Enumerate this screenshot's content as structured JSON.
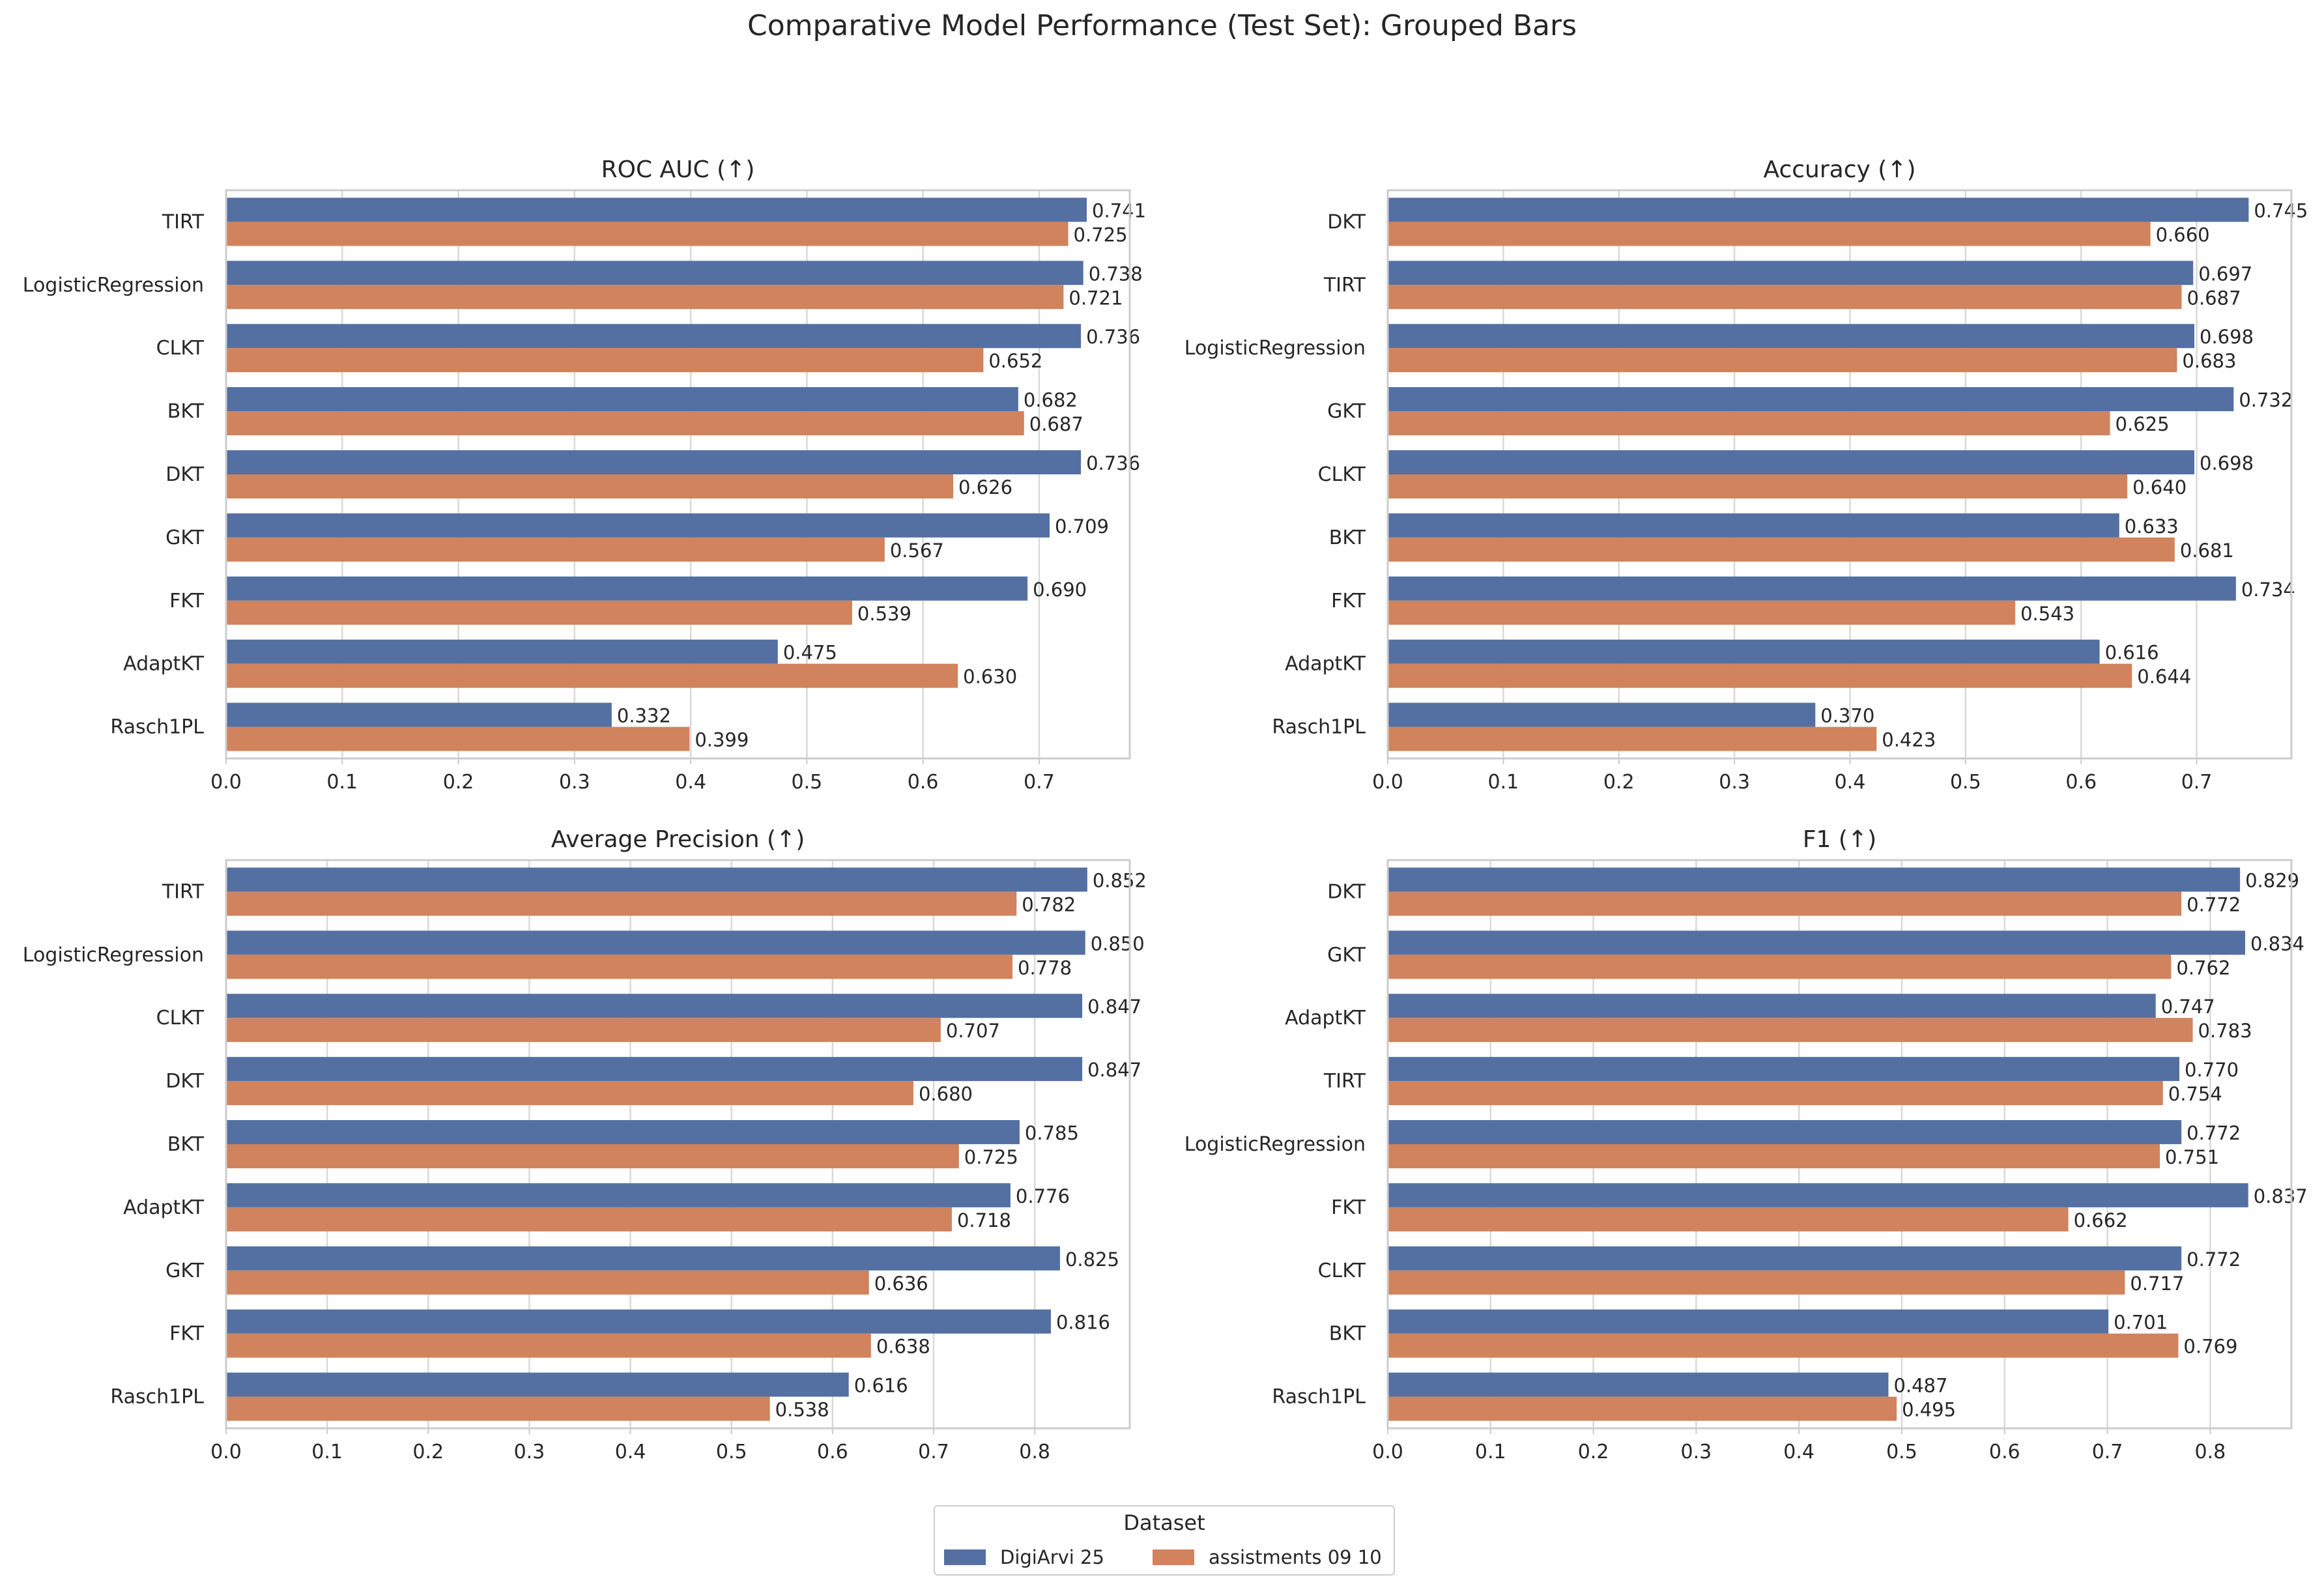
{
  "suptitle": "Comparative Model Performance (Test Set): Grouped Bars",
  "colors": {
    "DigiArvi 25": "#5470a3",
    "assistments 09 10": "#d0835c"
  },
  "legend": {
    "title": "Dataset",
    "entries": [
      "DigiArvi 25",
      "assistments 09 10"
    ]
  },
  "chart_data": [
    {
      "type": "bar",
      "orientation": "horizontal",
      "title": "ROC AUC (↑)",
      "categories": [
        "TIRT",
        "LogisticRegression",
        "CLKT",
        "BKT",
        "DKT",
        "GKT",
        "FKT",
        "AdaptKT",
        "Rasch1PL"
      ],
      "series": [
        {
          "name": "DigiArvi 25",
          "values": [
            0.741,
            0.738,
            0.736,
            0.682,
            0.736,
            0.709,
            0.69,
            0.475,
            0.332
          ]
        },
        {
          "name": "assistments 09 10",
          "values": [
            0.725,
            0.721,
            0.652,
            0.687,
            0.626,
            0.567,
            0.539,
            0.63,
            0.399
          ]
        }
      ],
      "xlim": [
        0,
        0.778
      ],
      "xticks": [
        "0.0",
        "0.1",
        "0.2",
        "0.3",
        "0.4",
        "0.5",
        "0.6",
        "0.7"
      ],
      "grid": true
    },
    {
      "type": "bar",
      "orientation": "horizontal",
      "title": "Accuracy (↑)",
      "categories": [
        "DKT",
        "TIRT",
        "LogisticRegression",
        "GKT",
        "CLKT",
        "BKT",
        "FKT",
        "AdaptKT",
        "Rasch1PL"
      ],
      "series": [
        {
          "name": "DigiArvi 25",
          "values": [
            0.745,
            0.697,
            0.698,
            0.732,
            0.698,
            0.633,
            0.734,
            0.616,
            0.37
          ]
        },
        {
          "name": "assistments 09 10",
          "values": [
            0.66,
            0.687,
            0.683,
            0.625,
            0.64,
            0.681,
            0.543,
            0.644,
            0.423
          ]
        }
      ],
      "xlim": [
        0,
        0.782
      ],
      "xticks": [
        "0.0",
        "0.1",
        "0.2",
        "0.3",
        "0.4",
        "0.5",
        "0.6",
        "0.7"
      ],
      "grid": true
    },
    {
      "type": "bar",
      "orientation": "horizontal",
      "title": "Average Precision (↑)",
      "categories": [
        "TIRT",
        "LogisticRegression",
        "CLKT",
        "DKT",
        "BKT",
        "AdaptKT",
        "GKT",
        "FKT",
        "Rasch1PL"
      ],
      "series": [
        {
          "name": "DigiArvi 25",
          "values": [
            0.852,
            0.85,
            0.847,
            0.847,
            0.785,
            0.776,
            0.825,
            0.816,
            0.616
          ]
        },
        {
          "name": "assistments 09 10",
          "values": [
            0.782,
            0.778,
            0.707,
            0.68,
            0.725,
            0.718,
            0.636,
            0.638,
            0.538
          ]
        }
      ],
      "xlim": [
        0,
        0.894
      ],
      "xticks": [
        "0.0",
        "0.1",
        "0.2",
        "0.3",
        "0.4",
        "0.5",
        "0.6",
        "0.7",
        "0.8"
      ],
      "grid": true
    },
    {
      "type": "bar",
      "orientation": "horizontal",
      "title": "F1 (↑)",
      "categories": [
        "DKT",
        "GKT",
        "AdaptKT",
        "TIRT",
        "LogisticRegression",
        "FKT",
        "CLKT",
        "BKT",
        "Rasch1PL"
      ],
      "series": [
        {
          "name": "DigiArvi 25",
          "values": [
            0.829,
            0.834,
            0.747,
            0.77,
            0.772,
            0.837,
            0.772,
            0.701,
            0.487
          ]
        },
        {
          "name": "assistments 09 10",
          "values": [
            0.772,
            0.762,
            0.783,
            0.754,
            0.751,
            0.662,
            0.717,
            0.769,
            0.495
          ]
        }
      ],
      "xlim": [
        0,
        0.879
      ],
      "xticks": [
        "0.0",
        "0.1",
        "0.2",
        "0.3",
        "0.4",
        "0.5",
        "0.6",
        "0.7",
        "0.8"
      ],
      "grid": true
    }
  ]
}
